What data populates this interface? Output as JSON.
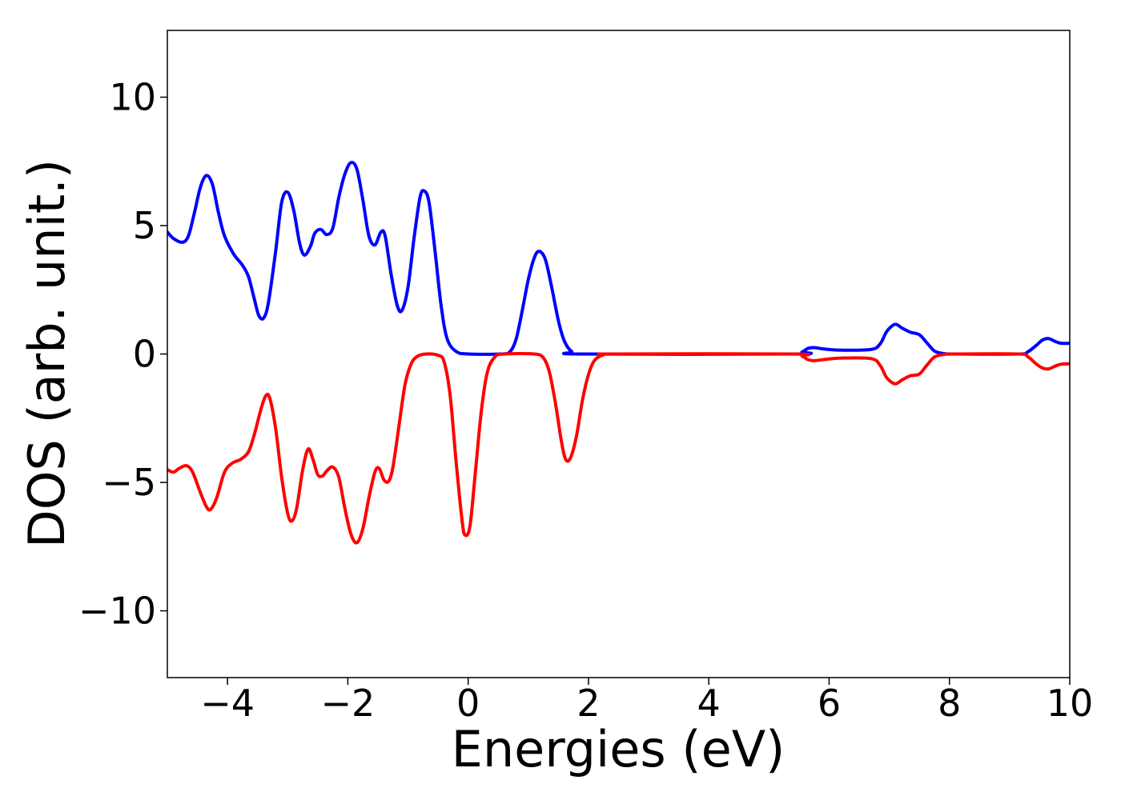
{
  "chart_data": {
    "type": "line",
    "title": "",
    "xlabel": "Energies (eV)",
    "ylabel": "DOS (arb. unit.)",
    "xlim": [
      -5,
      10
    ],
    "ylim": [
      -12.6,
      12.6
    ],
    "grid": false,
    "legend": "none",
    "x_ticks": [
      {
        "value": -4,
        "label": "−4"
      },
      {
        "value": -2,
        "label": "−2"
      },
      {
        "value": 0,
        "label": "0"
      },
      {
        "value": 2,
        "label": "2"
      },
      {
        "value": 4,
        "label": "4"
      },
      {
        "value": 6,
        "label": "6"
      },
      {
        "value": 8,
        "label": "8"
      },
      {
        "value": 10,
        "label": "10"
      }
    ],
    "y_ticks": [
      {
        "value": -10,
        "label": "−10"
      },
      {
        "value": -5,
        "label": "−5"
      },
      {
        "value": 0,
        "label": "0"
      },
      {
        "value": 5,
        "label": "5"
      },
      {
        "value": 10,
        "label": "10"
      }
    ],
    "series": [
      {
        "color": "#0000ff",
        "points": [
          [
            -5.0,
            4.75
          ],
          [
            -4.9,
            4.5
          ],
          [
            -4.75,
            4.35
          ],
          [
            -4.65,
            4.6
          ],
          [
            -4.55,
            5.5
          ],
          [
            -4.45,
            6.5
          ],
          [
            -4.35,
            6.95
          ],
          [
            -4.25,
            6.6
          ],
          [
            -4.15,
            5.5
          ],
          [
            -4.05,
            4.6
          ],
          [
            -3.9,
            3.9
          ],
          [
            -3.75,
            3.45
          ],
          [
            -3.65,
            3.0
          ],
          [
            -3.55,
            2.1
          ],
          [
            -3.48,
            1.5
          ],
          [
            -3.4,
            1.4
          ],
          [
            -3.32,
            2.0
          ],
          [
            -3.2,
            4.0
          ],
          [
            -3.1,
            5.9
          ],
          [
            -3.0,
            6.3
          ],
          [
            -2.9,
            5.6
          ],
          [
            -2.8,
            4.3
          ],
          [
            -2.72,
            3.85
          ],
          [
            -2.62,
            4.2
          ],
          [
            -2.55,
            4.7
          ],
          [
            -2.45,
            4.85
          ],
          [
            -2.35,
            4.65
          ],
          [
            -2.25,
            4.9
          ],
          [
            -2.15,
            6.1
          ],
          [
            -2.05,
            7.0
          ],
          [
            -1.95,
            7.45
          ],
          [
            -1.85,
            7.2
          ],
          [
            -1.75,
            6.0
          ],
          [
            -1.65,
            4.6
          ],
          [
            -1.55,
            4.25
          ],
          [
            -1.45,
            4.75
          ],
          [
            -1.38,
            4.6
          ],
          [
            -1.28,
            3.1
          ],
          [
            -1.18,
            1.9
          ],
          [
            -1.1,
            1.7
          ],
          [
            -1.0,
            2.6
          ],
          [
            -0.9,
            4.5
          ],
          [
            -0.8,
            6.1
          ],
          [
            -0.73,
            6.35
          ],
          [
            -0.65,
            5.9
          ],
          [
            -0.55,
            4.0
          ],
          [
            -0.45,
            1.9
          ],
          [
            -0.35,
            0.6
          ],
          [
            -0.2,
            0.1
          ],
          [
            0.0,
            0.0
          ],
          [
            0.55,
            0.0
          ],
          [
            0.7,
            0.1
          ],
          [
            0.8,
            0.6
          ],
          [
            0.9,
            1.7
          ],
          [
            1.0,
            2.9
          ],
          [
            1.1,
            3.75
          ],
          [
            1.18,
            4.0
          ],
          [
            1.28,
            3.7
          ],
          [
            1.38,
            2.7
          ],
          [
            1.5,
            1.3
          ],
          [
            1.6,
            0.5
          ],
          [
            1.72,
            0.1
          ],
          [
            1.9,
            0.0
          ],
          [
            5.4,
            0.0
          ],
          [
            5.55,
            0.08
          ],
          [
            5.65,
            0.22
          ],
          [
            5.75,
            0.25
          ],
          [
            5.9,
            0.2
          ],
          [
            6.2,
            0.15
          ],
          [
            6.7,
            0.18
          ],
          [
            6.85,
            0.4
          ],
          [
            6.95,
            0.85
          ],
          [
            7.05,
            1.1
          ],
          [
            7.12,
            1.15
          ],
          [
            7.22,
            1.0
          ],
          [
            7.35,
            0.85
          ],
          [
            7.5,
            0.75
          ],
          [
            7.62,
            0.45
          ],
          [
            7.75,
            0.12
          ],
          [
            7.9,
            0.02
          ],
          [
            8.1,
            0.0
          ],
          [
            9.15,
            0.0
          ],
          [
            9.3,
            0.08
          ],
          [
            9.45,
            0.35
          ],
          [
            9.55,
            0.55
          ],
          [
            9.65,
            0.6
          ],
          [
            9.75,
            0.5
          ],
          [
            9.85,
            0.42
          ],
          [
            10.0,
            0.42
          ]
        ]
      },
      {
        "color": "#ff0000",
        "points": [
          [
            -5.0,
            -4.5
          ],
          [
            -4.9,
            -4.6
          ],
          [
            -4.8,
            -4.45
          ],
          [
            -4.68,
            -4.35
          ],
          [
            -4.58,
            -4.6
          ],
          [
            -4.45,
            -5.4
          ],
          [
            -4.35,
            -5.95
          ],
          [
            -4.28,
            -6.05
          ],
          [
            -4.18,
            -5.6
          ],
          [
            -4.05,
            -4.6
          ],
          [
            -3.92,
            -4.25
          ],
          [
            -3.78,
            -4.1
          ],
          [
            -3.65,
            -3.8
          ],
          [
            -3.55,
            -3.1
          ],
          [
            -3.45,
            -2.2
          ],
          [
            -3.37,
            -1.65
          ],
          [
            -3.3,
            -1.7
          ],
          [
            -3.2,
            -2.9
          ],
          [
            -3.1,
            -4.8
          ],
          [
            -3.0,
            -6.2
          ],
          [
            -2.93,
            -6.5
          ],
          [
            -2.85,
            -6.0
          ],
          [
            -2.75,
            -4.5
          ],
          [
            -2.66,
            -3.7
          ],
          [
            -2.58,
            -4.1
          ],
          [
            -2.5,
            -4.7
          ],
          [
            -2.42,
            -4.75
          ],
          [
            -2.35,
            -4.55
          ],
          [
            -2.25,
            -4.4
          ],
          [
            -2.15,
            -4.8
          ],
          [
            -2.05,
            -6.0
          ],
          [
            -1.95,
            -7.0
          ],
          [
            -1.85,
            -7.35
          ],
          [
            -1.75,
            -6.8
          ],
          [
            -1.65,
            -5.6
          ],
          [
            -1.55,
            -4.6
          ],
          [
            -1.48,
            -4.45
          ],
          [
            -1.4,
            -4.9
          ],
          [
            -1.32,
            -4.95
          ],
          [
            -1.25,
            -4.4
          ],
          [
            -1.15,
            -2.8
          ],
          [
            -1.05,
            -1.2
          ],
          [
            -0.95,
            -0.4
          ],
          [
            -0.85,
            -0.1
          ],
          [
            -0.7,
            0.0
          ],
          [
            -0.5,
            -0.05
          ],
          [
            -0.4,
            -0.3
          ],
          [
            -0.3,
            -1.6
          ],
          [
            -0.2,
            -4.2
          ],
          [
            -0.1,
            -6.5
          ],
          [
            -0.05,
            -7.05
          ],
          [
            0.03,
            -6.7
          ],
          [
            0.12,
            -4.6
          ],
          [
            0.22,
            -2.2
          ],
          [
            0.32,
            -0.7
          ],
          [
            0.45,
            -0.1
          ],
          [
            0.6,
            0.0
          ],
          [
            1.1,
            0.0
          ],
          [
            1.25,
            -0.15
          ],
          [
            1.35,
            -0.7
          ],
          [
            1.45,
            -1.9
          ],
          [
            1.55,
            -3.4
          ],
          [
            1.62,
            -4.1
          ],
          [
            1.7,
            -4.05
          ],
          [
            1.8,
            -3.2
          ],
          [
            1.9,
            -1.8
          ],
          [
            2.0,
            -0.8
          ],
          [
            2.1,
            -0.25
          ],
          [
            2.25,
            -0.03
          ],
          [
            2.45,
            0.0
          ],
          [
            5.4,
            0.0
          ],
          [
            5.55,
            -0.08
          ],
          [
            5.65,
            -0.22
          ],
          [
            5.75,
            -0.26
          ],
          [
            5.9,
            -0.22
          ],
          [
            6.2,
            -0.16
          ],
          [
            6.7,
            -0.18
          ],
          [
            6.85,
            -0.45
          ],
          [
            6.95,
            -0.9
          ],
          [
            7.05,
            -1.12
          ],
          [
            7.12,
            -1.15
          ],
          [
            7.22,
            -1.0
          ],
          [
            7.35,
            -0.85
          ],
          [
            7.5,
            -0.78
          ],
          [
            7.62,
            -0.45
          ],
          [
            7.75,
            -0.12
          ],
          [
            7.9,
            -0.02
          ],
          [
            8.1,
            0.0
          ],
          [
            9.15,
            0.0
          ],
          [
            9.3,
            -0.1
          ],
          [
            9.45,
            -0.4
          ],
          [
            9.55,
            -0.55
          ],
          [
            9.65,
            -0.58
          ],
          [
            9.75,
            -0.48
          ],
          [
            9.85,
            -0.4
          ],
          [
            10.0,
            -0.38
          ]
        ]
      }
    ]
  }
}
